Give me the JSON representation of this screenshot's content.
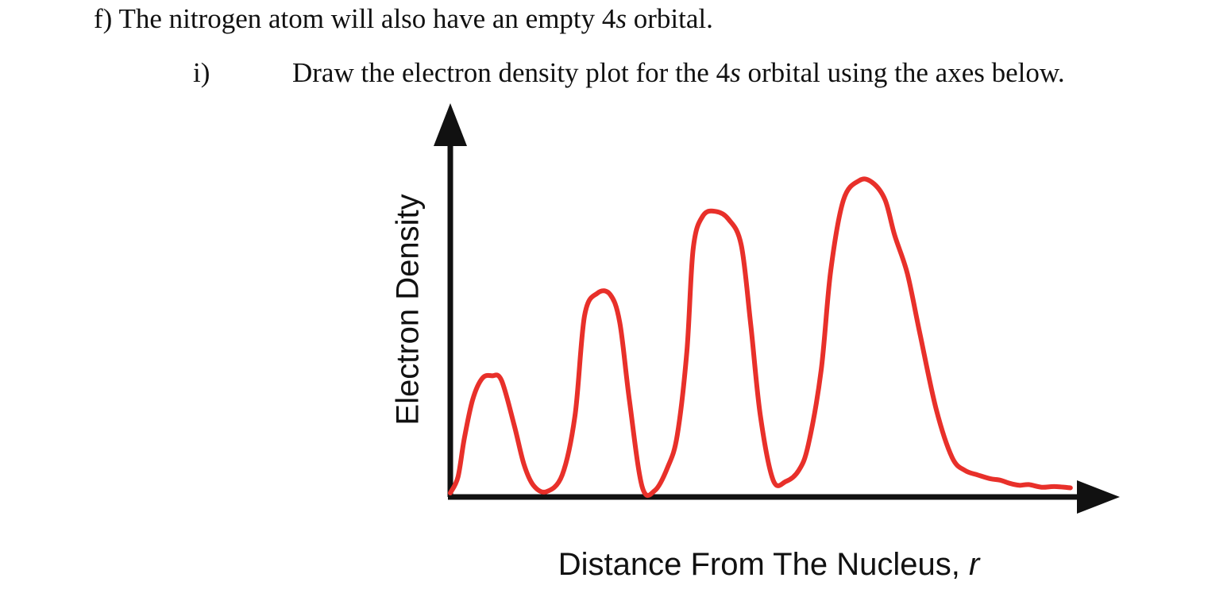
{
  "question": {
    "part_label": "f)",
    "text_before": "The nitrogen atom will also have an empty 4",
    "italic_symbol": "s",
    "text_after": " orbital."
  },
  "subquestion": {
    "marker": "i)",
    "text_before": "Draw the electron density plot for the 4",
    "italic_symbol": "s",
    "text_after": " orbital using the axes below."
  },
  "chart_data": {
    "type": "line",
    "title": "",
    "xlabel": "Distance From The Nucleus, ",
    "xlabel_italic": "r",
    "ylabel": "Electron Density",
    "xlim": [
      0,
      10
    ],
    "ylim": [
      0,
      6
    ],
    "grid": false,
    "ticks": false,
    "series": [
      {
        "color": "#e8302a",
        "x": [
          0,
          0.12,
          0.22,
          0.35,
          0.5,
          0.65,
          0.8,
          1.0,
          1.15,
          1.3,
          1.5,
          1.75,
          1.95,
          2.1,
          2.3,
          2.5,
          2.65,
          2.8,
          3.0,
          3.2,
          3.4,
          3.55,
          3.7,
          3.8,
          3.95,
          4.15,
          4.35,
          4.55,
          4.7,
          4.85,
          5.05,
          5.25,
          5.45,
          5.6,
          5.8,
          5.95,
          6.15,
          6.4,
          6.6,
          6.8,
          6.95,
          7.15,
          7.35,
          7.6,
          7.85,
          8.05,
          8.25,
          8.45,
          8.6,
          8.75,
          8.9,
          9.05,
          9.25,
          9.45,
          9.7
        ],
        "y": [
          0,
          0.25,
          0.85,
          1.45,
          1.78,
          1.82,
          1.75,
          1.05,
          0.45,
          0.12,
          0.02,
          0.28,
          1.2,
          2.75,
          3.1,
          3.08,
          2.65,
          1.45,
          0.1,
          0.04,
          0.4,
          0.9,
          2.2,
          3.8,
          4.3,
          4.37,
          4.25,
          3.85,
          2.6,
          1.2,
          0.2,
          0.18,
          0.35,
          0.75,
          1.9,
          3.45,
          4.55,
          4.85,
          4.82,
          4.55,
          4.0,
          3.4,
          2.45,
          1.3,
          0.55,
          0.35,
          0.28,
          0.22,
          0.2,
          0.15,
          0.12,
          0.13,
          0.09,
          0.1,
          0.08
        ]
      }
    ]
  }
}
